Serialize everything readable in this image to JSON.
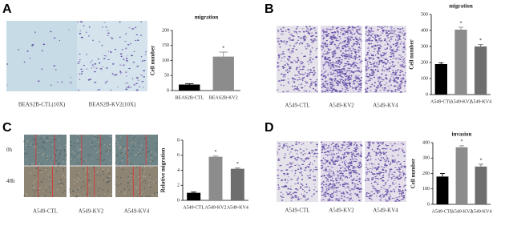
{
  "panels": [
    {
      "label": "A",
      "captions": [
        "BEAS2B-CTL(10X)",
        "BEAS2B-KV2(10X)"
      ]
    },
    {
      "label": "B",
      "captions": [
        "A549-CTL",
        "A549-KV2",
        "A549-KV4"
      ]
    },
    {
      "label": "C",
      "captions": [
        "A549-CTL",
        "A549-KV2",
        "A549-KV4"
      ],
      "row_labels": [
        "0h",
        "48h"
      ]
    },
    {
      "label": "D",
      "captions": [
        "A549-CTL",
        "A549-KV2",
        "A549-KV4"
      ]
    }
  ],
  "chart_data": [
    {
      "type": "bar",
      "title": "migration",
      "y_label": "Cell number",
      "categories": [
        "BEAS2B-CTL",
        "BEAS2B-KV2"
      ],
      "values": [
        20,
        113
      ],
      "errors": [
        3,
        15
      ],
      "colors": [
        "#000000",
        "#8c8c8c"
      ],
      "significance": [
        null,
        "*"
      ],
      "ylim": [
        0,
        200
      ],
      "yticks": [
        0,
        50,
        100,
        150,
        200
      ]
    },
    {
      "type": "bar",
      "title": "migration",
      "y_label": "Cell number",
      "categories": [
        "A549-CTL",
        "A549-KV2",
        "A549-KV4"
      ],
      "values": [
        190,
        405,
        300
      ],
      "errors": [
        8,
        15,
        12
      ],
      "colors": [
        "#000000",
        "#8c8c8c",
        "#6e6e6e"
      ],
      "significance": [
        null,
        "*",
        "*"
      ],
      "ylim": [
        0,
        500
      ],
      "yticks": [
        0,
        100,
        200,
        300,
        400,
        500
      ]
    },
    {
      "type": "bar",
      "y_label": "Relative migration",
      "categories": [
        "A549-CTL",
        "A549-KV2",
        "A549-KV4"
      ],
      "values": [
        1.0,
        5.8,
        4.2
      ],
      "errors": [
        0.1,
        0.1,
        0.1
      ],
      "colors": [
        "#000000",
        "#8c8c8c",
        "#6e6e6e"
      ],
      "significance": [
        null,
        "*",
        "*"
      ],
      "ylim": [
        0,
        8
      ],
      "yticks": [
        0,
        2,
        4,
        6,
        8
      ]
    },
    {
      "type": "bar",
      "title": "invasion",
      "y_label": "Cell number",
      "categories": [
        "A549-CTL",
        "A549-KV2",
        "A549-KV4"
      ],
      "values": [
        180,
        370,
        245
      ],
      "errors": [
        20,
        10,
        15
      ],
      "colors": [
        "#000000",
        "#8c8c8c",
        "#6e6e6e"
      ],
      "significance": [
        null,
        "*",
        "*"
      ],
      "ylim": [
        0,
        400
      ],
      "yticks": [
        0,
        100,
        200,
        300,
        400
      ]
    }
  ]
}
